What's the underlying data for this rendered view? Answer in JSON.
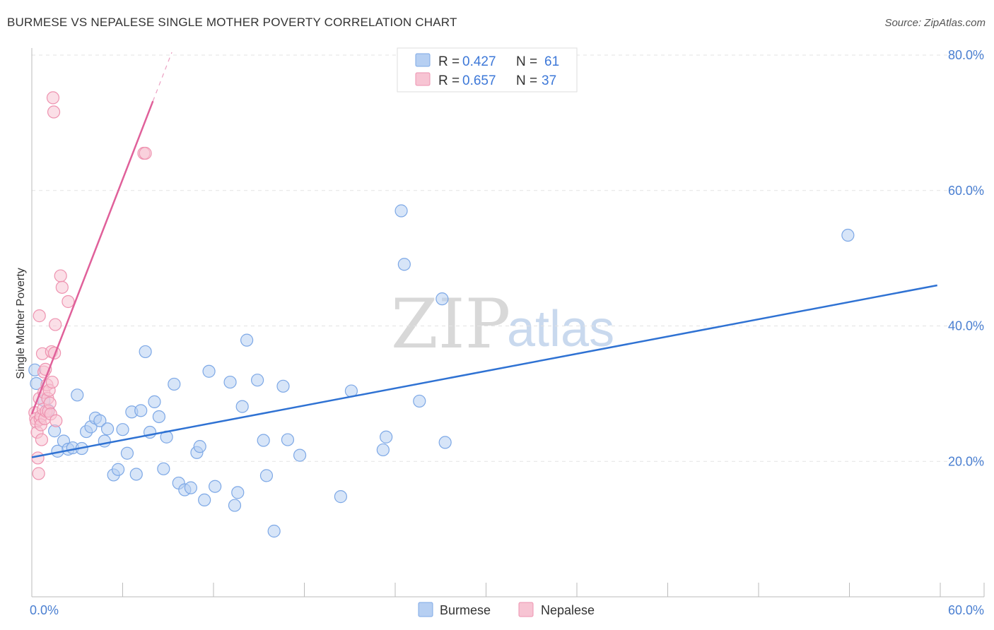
{
  "header": {
    "title": "BURMESE VS NEPALESE SINGLE MOTHER POVERTY CORRELATION CHART",
    "source": "Source: ZipAtlas.com"
  },
  "watermark": {
    "zip": "ZIP",
    "atlas": "atlas"
  },
  "colors": {
    "burmese_fill": "#b6cff2",
    "burmese_stroke": "#7da8e6",
    "burmese_line": "#2f72d3",
    "nepalese_fill": "#f7c4d3",
    "nepalese_stroke": "#ee93b0",
    "nepalese_line": "#e0609a",
    "tick_text": "#4a7fd1",
    "grid": "#e3e3e3"
  },
  "legend": {
    "rows": [
      {
        "r_label": "R =",
        "r_value": "0.427",
        "n_label": "N =",
        "n_value": "61"
      },
      {
        "r_label": "R =",
        "r_value": "0.657",
        "n_label": "N =",
        "n_value": "37"
      }
    ]
  },
  "chart_data": {
    "type": "scatter",
    "xlabel": "",
    "ylabel": "Single Mother Poverty",
    "xlim": [
      0,
      60
    ],
    "ylim": [
      0,
      80
    ],
    "x_tick_labels": [
      "0.0%",
      "60.0%"
    ],
    "y_ticks": [
      {
        "value": 20,
        "label": "20.0%"
      },
      {
        "value": 40,
        "label": "40.0%"
      },
      {
        "value": 60,
        "label": "60.0%"
      },
      {
        "value": 80,
        "label": "80.0%"
      }
    ],
    "grid": "horizontal dashed",
    "legend_placement": "top-center",
    "series": [
      {
        "name": "Burmese",
        "r": 0.427,
        "n": 61,
        "trend": {
          "x1": 0.0,
          "y1": 20.6,
          "x2": 59.8,
          "y2": 46.0
        },
        "points": [
          [
            0.2,
            33.5
          ],
          [
            0.3,
            31.5
          ],
          [
            0.8,
            29.0
          ],
          [
            1.1,
            27.5
          ],
          [
            1.5,
            24.5
          ],
          [
            1.7,
            21.5
          ],
          [
            2.1,
            23.0
          ],
          [
            2.4,
            21.8
          ],
          [
            2.7,
            22.0
          ],
          [
            3.0,
            29.8
          ],
          [
            3.3,
            21.9
          ],
          [
            3.6,
            24.4
          ],
          [
            3.9,
            25.1
          ],
          [
            4.2,
            26.4
          ],
          [
            4.5,
            26.0
          ],
          [
            4.8,
            23.0
          ],
          [
            5.0,
            24.8
          ],
          [
            5.4,
            18.0
          ],
          [
            5.7,
            18.8
          ],
          [
            6.0,
            24.7
          ],
          [
            6.3,
            21.2
          ],
          [
            6.6,
            27.3
          ],
          [
            6.9,
            18.1
          ],
          [
            7.2,
            27.5
          ],
          [
            7.5,
            36.2
          ],
          [
            7.8,
            24.3
          ],
          [
            8.1,
            28.8
          ],
          [
            8.4,
            26.6
          ],
          [
            8.7,
            18.9
          ],
          [
            8.9,
            23.6
          ],
          [
            9.4,
            31.4
          ],
          [
            9.7,
            16.8
          ],
          [
            10.1,
            15.8
          ],
          [
            10.5,
            16.1
          ],
          [
            10.9,
            21.3
          ],
          [
            11.1,
            22.2
          ],
          [
            11.4,
            14.3
          ],
          [
            11.7,
            33.3
          ],
          [
            12.1,
            16.3
          ],
          [
            13.1,
            31.7
          ],
          [
            13.4,
            13.5
          ],
          [
            13.6,
            15.4
          ],
          [
            13.9,
            28.1
          ],
          [
            14.2,
            37.9
          ],
          [
            14.9,
            32.0
          ],
          [
            15.3,
            23.1
          ],
          [
            15.5,
            17.9
          ],
          [
            16.0,
            9.7
          ],
          [
            16.6,
            31.1
          ],
          [
            16.9,
            23.2
          ],
          [
            17.7,
            20.9
          ],
          [
            20.4,
            14.8
          ],
          [
            21.1,
            30.4
          ],
          [
            23.2,
            21.7
          ],
          [
            23.4,
            23.6
          ],
          [
            24.4,
            57.0
          ],
          [
            24.6,
            49.1
          ],
          [
            25.6,
            28.9
          ],
          [
            27.1,
            44.0
          ],
          [
            27.3,
            22.8
          ],
          [
            53.9,
            53.4
          ]
        ]
      },
      {
        "name": "Nepalese",
        "r": 0.657,
        "n": 37,
        "trend": {
          "x1": 0.0,
          "y1": 27.0,
          "x2": 8.0,
          "y2": 73.2
        },
        "points": [
          [
            0.2,
            27.2
          ],
          [
            0.25,
            26.3
          ],
          [
            0.3,
            25.8
          ],
          [
            0.35,
            24.3
          ],
          [
            0.4,
            20.5
          ],
          [
            0.45,
            18.2
          ],
          [
            0.5,
            29.3
          ],
          [
            0.5,
            41.5
          ],
          [
            0.55,
            26.2
          ],
          [
            0.6,
            26.7
          ],
          [
            0.6,
            25.4
          ],
          [
            0.65,
            23.2
          ],
          [
            0.7,
            35.9
          ],
          [
            0.75,
            27.7
          ],
          [
            0.8,
            30.2
          ],
          [
            0.8,
            33.2
          ],
          [
            0.85,
            26.3
          ],
          [
            0.9,
            33.6
          ],
          [
            0.95,
            27.4
          ],
          [
            1.0,
            31.3
          ],
          [
            1.05,
            29.3
          ],
          [
            1.1,
            27.4
          ],
          [
            1.15,
            30.5
          ],
          [
            1.2,
            28.6
          ],
          [
            1.25,
            27.0
          ],
          [
            1.3,
            36.2
          ],
          [
            1.35,
            31.7
          ],
          [
            1.4,
            73.7
          ],
          [
            1.45,
            71.6
          ],
          [
            1.5,
            36.0
          ],
          [
            1.55,
            40.2
          ],
          [
            1.6,
            26.0
          ],
          [
            1.9,
            47.4
          ],
          [
            2.0,
            45.7
          ],
          [
            2.4,
            43.6
          ],
          [
            7.4,
            65.5
          ],
          [
            7.5,
            65.5
          ]
        ]
      }
    ]
  },
  "bottom_legend": {
    "items": [
      "Burmese",
      "Nepalese"
    ]
  }
}
